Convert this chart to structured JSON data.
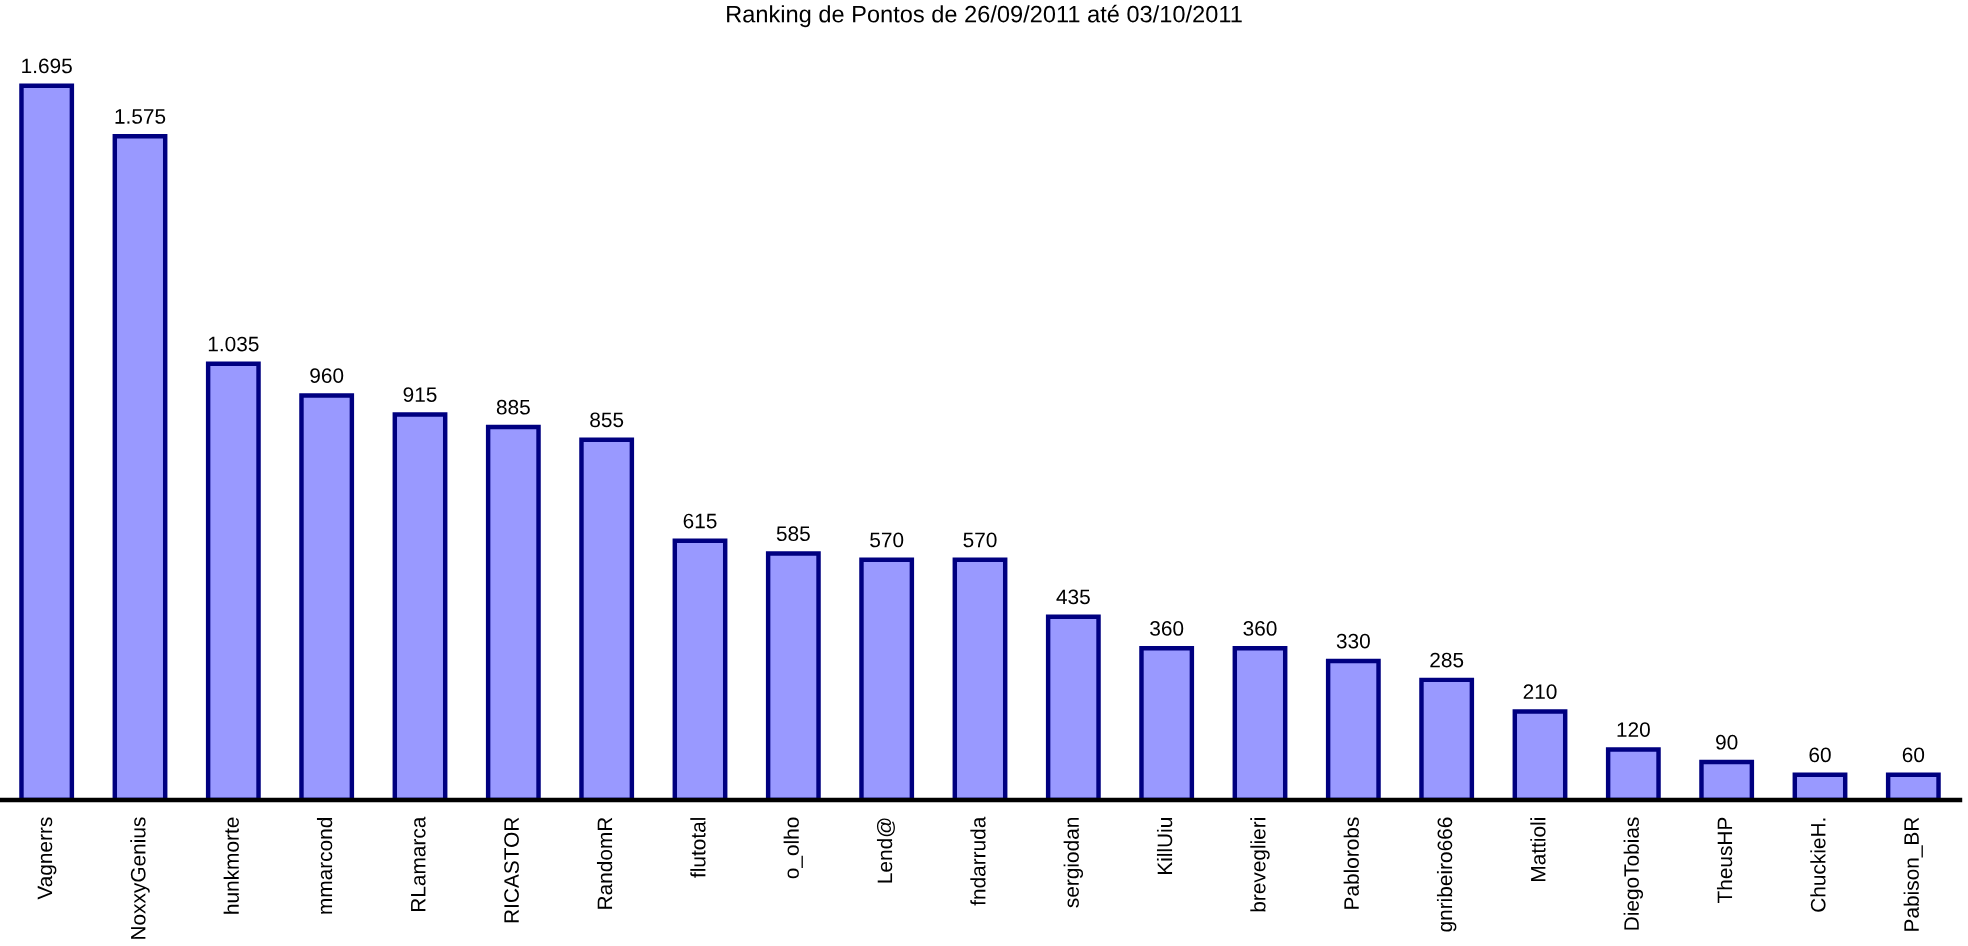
{
  "chart_data": {
    "type": "bar",
    "title": "Ranking de Pontos de 26/09/2011 até 03/10/2011",
    "categories": [
      "Vagnerrs",
      "NoxxyGenius",
      "hunkmorte",
      "mmarcond",
      "RLamarca",
      "RICASTOR",
      "RandomR",
      "flutotal",
      "o_olho",
      "Lend@",
      "fndarruda",
      "sergiodan",
      "KillUiu",
      "breveglieri",
      "Pablorobs",
      "gnribeiro666",
      "Mattioli",
      "DiegoTobias",
      "TheusHP",
      "ChuckieH.",
      "Pabison_BR"
    ],
    "values": [
      1695,
      1575,
      1035,
      960,
      915,
      885,
      855,
      615,
      585,
      570,
      570,
      435,
      360,
      360,
      330,
      285,
      210,
      120,
      90,
      60,
      60
    ],
    "value_labels": [
      "1.695",
      "1.575",
      "1.035",
      "960",
      "915",
      "885",
      "855",
      "615",
      "585",
      "570",
      "570",
      "435",
      "360",
      "360",
      "330",
      "285",
      "210",
      "120",
      "90",
      "60",
      "60"
    ],
    "color": "#9999ff",
    "tick_labels": "x"
  }
}
